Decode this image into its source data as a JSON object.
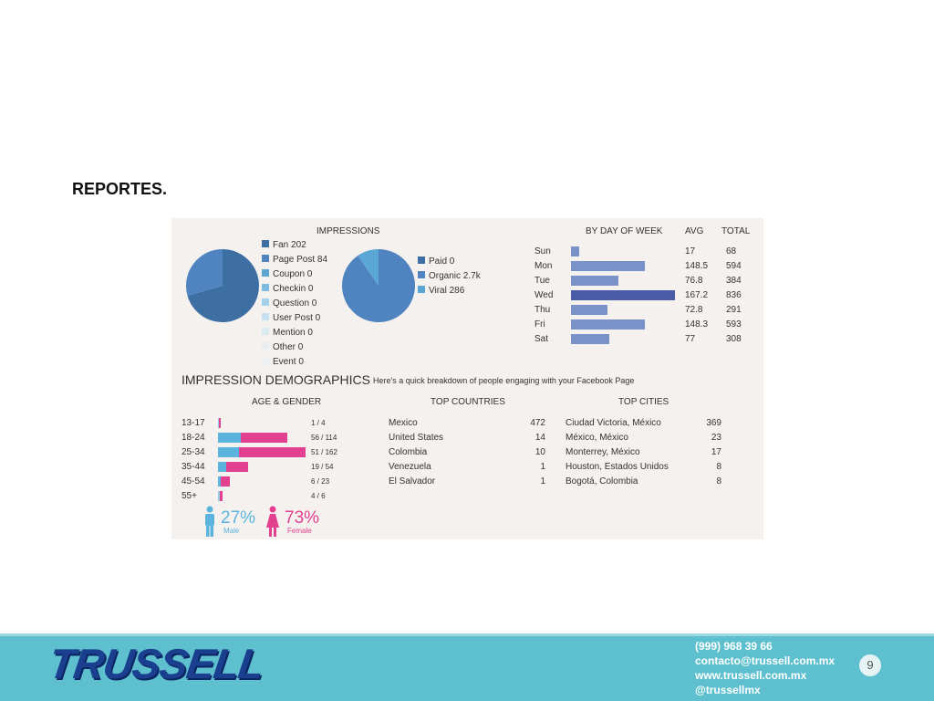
{
  "slide": {
    "title": "REPORTES."
  },
  "impressions": {
    "title": "IMPRESSIONS",
    "types": [
      {
        "label": "Fan 202",
        "color": "#3d6fa3"
      },
      {
        "label": "Page Post 84",
        "color": "#4f84c0"
      },
      {
        "label": "Coupon 0",
        "color": "#5aa7d6"
      },
      {
        "label": "Checkin 0",
        "color": "#7bbde0"
      },
      {
        "label": "Question 0",
        "color": "#a4d2ea"
      },
      {
        "label": "User Post 0",
        "color": "#c6e2f0"
      },
      {
        "label": "Mention 0",
        "color": "#dbe9f1"
      },
      {
        "label": "Other 0",
        "color": "#e6eef3"
      },
      {
        "label": "Event 0",
        "color": "#edf1f4"
      }
    ],
    "sources": [
      {
        "label": "Paid 0",
        "color": "#3d6fa3"
      },
      {
        "label": "Organic 2.7k",
        "color": "#4f84c0"
      },
      {
        "label": "Viral 286",
        "color": "#5aa7d6"
      }
    ]
  },
  "by_day": {
    "title": "BY DAY OF WEEK",
    "avg_label": "AVG",
    "total_label": "TOTAL",
    "rows": [
      {
        "day": "Sun",
        "avg": "17",
        "total": "68",
        "value": 68
      },
      {
        "day": "Mon",
        "avg": "148.5",
        "total": "594",
        "value": 594
      },
      {
        "day": "Tue",
        "avg": "76.8",
        "total": "384",
        "value": 384
      },
      {
        "day": "Wed",
        "avg": "167.2",
        "total": "836",
        "value": 836
      },
      {
        "day": "Thu",
        "avg": "72.8",
        "total": "291",
        "value": 291
      },
      {
        "day": "Fri",
        "avg": "148.3",
        "total": "593",
        "value": 593
      },
      {
        "day": "Sat",
        "avg": "77",
        "total": "308",
        "value": 308
      }
    ],
    "bar_color": "#7b92c9",
    "highlight_color": "#4a5ca8"
  },
  "demographics": {
    "title": "IMPRESSION DEMOGRAPHICS",
    "subtitle": "Here's a quick breakdown of people engaging with your Facebook Page",
    "age_gender_title": "AGE & GENDER",
    "countries_title": "TOP COUNTRIES",
    "cities_title": "TOP CITIES",
    "male_color": "#5ab4de",
    "female_color": "#e3408f",
    "age_rows": [
      {
        "range": "13-17",
        "label": "1 / 4",
        "male": 1,
        "female": 4
      },
      {
        "range": "18-24",
        "label": "56 / 114",
        "male": 56,
        "female": 114
      },
      {
        "range": "25-34",
        "label": "51 / 162",
        "male": 51,
        "female": 162
      },
      {
        "range": "35-44",
        "label": "19 / 54",
        "male": 19,
        "female": 54
      },
      {
        "range": "45-54",
        "label": "6 / 23",
        "male": 6,
        "female": 23
      },
      {
        "range": "55+",
        "label": "4 / 6",
        "male": 4,
        "female": 6
      }
    ],
    "countries": [
      {
        "name": "Mexico",
        "count": "472"
      },
      {
        "name": "United States",
        "count": "14"
      },
      {
        "name": "Colombia",
        "count": "10"
      },
      {
        "name": "Venezuela",
        "count": "1"
      },
      {
        "name": "El Salvador",
        "count": "1"
      }
    ],
    "cities": [
      {
        "name": "Ciudad Victoria, México",
        "count": "369"
      },
      {
        "name": "México,  México",
        "count": "23"
      },
      {
        "name": "Monterrey,  México",
        "count": "17"
      },
      {
        "name": "Houston,  Estados Unidos",
        "count": "8"
      },
      {
        "name": "Bogotá, Colombia",
        "count": "8"
      }
    ],
    "male_pct": "27%",
    "male_label": "Male",
    "female_pct": "73%",
    "female_label": "Female"
  },
  "footer": {
    "logo": "TRUSSELL",
    "phone": "(999) 968 39 66",
    "email": "contacto@trussell.com.mx",
    "website": "www.trussell.com.mx",
    "social": "@trussellmx",
    "page_number": "9"
  }
}
